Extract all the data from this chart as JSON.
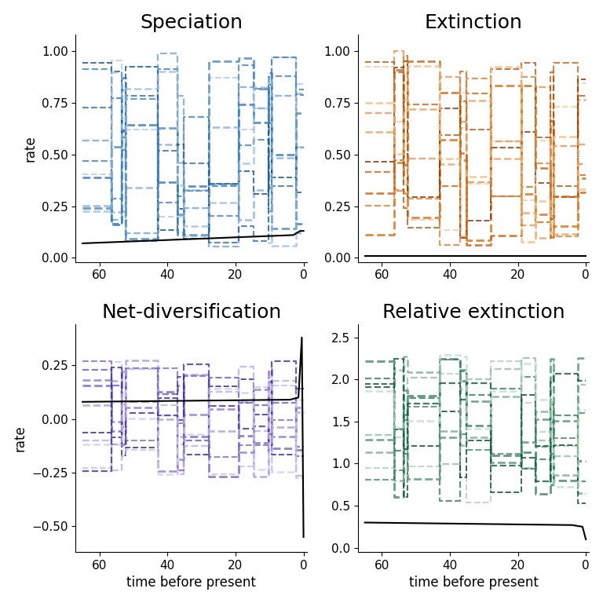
{
  "titles": [
    "Speciation",
    "Extinction",
    "Net-diversification",
    "Relative extinction"
  ],
  "ylabel": "rate",
  "xlabel": "time before present",
  "speciation_ylim": [
    -0.02,
    1.08
  ],
  "extinction_ylim": [
    -0.02,
    1.08
  ],
  "netdiv_ylim": [
    -0.62,
    0.44
  ],
  "relext_ylim": [
    -0.05,
    2.65
  ],
  "speciation_yticks": [
    0.0,
    0.25,
    0.5,
    0.75,
    1.0
  ],
  "extinction_yticks": [
    0.0,
    0.25,
    0.5,
    0.75,
    1.0
  ],
  "netdiv_yticks": [
    -0.5,
    -0.25,
    0.0,
    0.25
  ],
  "relext_yticks": [
    0.0,
    0.5,
    1.0,
    1.5,
    2.0,
    2.5
  ],
  "x_ticks": [
    60,
    40,
    20,
    0
  ],
  "n_lines": 10,
  "n_episodes": 13,
  "speciation_colors": [
    "#aec8e8",
    "#85afd6",
    "#5590c0",
    "#2c6faa",
    "#0d4f8e",
    "#6e9ec8",
    "#3a7ab8",
    "#1a5898",
    "#4d83b8",
    "#95bcd8"
  ],
  "extinction_colors": [
    "#f5c8a0",
    "#e8a060",
    "#d47820",
    "#b85800",
    "#8b3000",
    "#e09050",
    "#c86818",
    "#a04800",
    "#d08840",
    "#f0b878"
  ],
  "netdiv_colors": [
    "#c8bce8",
    "#a898d8",
    "#8070c0",
    "#5848a8",
    "#302888",
    "#b8a8e0",
    "#9880cc",
    "#7058b4",
    "#4830a0",
    "#d0c8f0"
  ],
  "relext_colors": [
    "#a8ccb8",
    "#78aa90",
    "#488870",
    "#206850",
    "#084830",
    "#8cba9c",
    "#5c9878",
    "#307858",
    "#105840",
    "#bcdcc8"
  ],
  "black_line": "#000000",
  "background": "#ffffff",
  "title_fontsize": 18,
  "label_fontsize": 12,
  "tick_fontsize": 11
}
